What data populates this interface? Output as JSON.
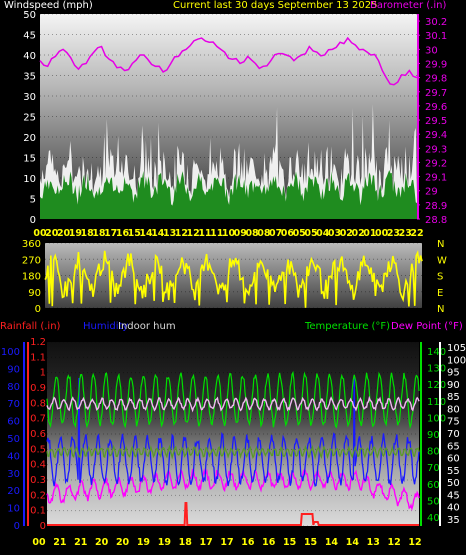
{
  "colors": {
    "wind": "#ffffff",
    "gust_fill": "#1f8c1f",
    "barometer": "#e600e6",
    "direction": "#ffff00",
    "rainfall": "#ff2020",
    "humidity": "#1a1aff",
    "indoor_hum": "#d8d8d8",
    "temperature": "#00e000",
    "dew_point": "#ff00ff",
    "indoor_temp": "#f0b8f0",
    "green_dark": "#5a9a28",
    "title": "#ffff00"
  },
  "chart_data": [
    {
      "type": "line",
      "title": "Current last 30 days September 13 2025",
      "left_label": "Windspeed (mph)",
      "right_label": "Barometer (.in)",
      "x_tick_labels": [
        "00",
        "20",
        "20",
        "19",
        "18",
        "18",
        "17",
        "16",
        "15",
        "14",
        "14",
        "13",
        "12",
        "12",
        "11",
        "11",
        "10",
        "09",
        "08",
        "08",
        "07",
        "06",
        "05",
        "05",
        "04",
        "03",
        "02",
        "02",
        "01",
        "00",
        "23",
        "23",
        "22"
      ],
      "ylim_left": [
        0,
        50
      ],
      "left_ticks": [
        0,
        5,
        10,
        15,
        20,
        25,
        30,
        35,
        40,
        45,
        50
      ],
      "ylim_right": [
        28.8,
        30.25
      ],
      "right_ticks": [
        "28.8",
        "28.9",
        "29",
        "29.1",
        "29.2",
        "29.3",
        "29.4",
        "29.5",
        "29.6",
        "29.7",
        "29.8",
        "29.9",
        "30",
        "30.1",
        "30.2"
      ],
      "series": [
        {
          "name": "Windspeed (mph)",
          "description_values": "wind speed mostly 0-15 mph, peaks to ~40"
        },
        {
          "name": "Barometer (.in)",
          "values": [
            29.92,
            29.88,
            29.95,
            30.0,
            29.94,
            29.86,
            29.9,
            29.98,
            30.02,
            29.93,
            29.87,
            29.85,
            29.9,
            29.96,
            29.93,
            29.88,
            29.84,
            29.9,
            29.95,
            30.0,
            30.06,
            30.08,
            30.05,
            30.02,
            29.98,
            29.93,
            29.9,
            29.95,
            29.9,
            29.88,
            29.92,
            29.97,
            29.96,
            29.92,
            29.96,
            30.02,
            29.98,
            29.96,
            30.0,
            30.05,
            30.08,
            30.03,
            30.0,
            29.96,
            29.92,
            29.8,
            29.75,
            29.82,
            29.85,
            29.8
          ]
        }
      ]
    },
    {
      "type": "line",
      "left_ticks": [
        0,
        90,
        180,
        270,
        360
      ],
      "right_labels": [
        "N",
        "W",
        "S",
        "E",
        "N"
      ],
      "series": [
        {
          "name": "Wind direction",
          "description_values": "direction varying 0-360 degrees"
        }
      ]
    },
    {
      "type": "line",
      "labels": {
        "rainfall": "Rainfall (.in)",
        "humidity": "Humidity",
        "indoor": "Indoor hum",
        "temperature": "Temperature (°F)",
        "dew_point": "Dew Point (°F)"
      },
      "rain_ticks": [
        "0",
        "0.1",
        "0.2",
        "0.3",
        "0.4",
        "0.5",
        "0.6",
        "0.7",
        "0.8",
        "0.9",
        "1",
        "1.1",
        "1.2"
      ],
      "hum_ticks": [
        0,
        10,
        20,
        30,
        40,
        50,
        60,
        70,
        80,
        90,
        100
      ],
      "temp_ticks": [
        40,
        50,
        60,
        70,
        80,
        90,
        100,
        110,
        120,
        130,
        140
      ],
      "dew_ticks": [
        35,
        40,
        45,
        50,
        55,
        60,
        65,
        70,
        75,
        80,
        85,
        90,
        95,
        100,
        105
      ],
      "x_tick_labels": [
        "00",
        "21",
        "21",
        "20",
        "20",
        "19",
        "19",
        "18",
        "17",
        "17",
        "16",
        "16",
        "15",
        "15",
        "14",
        "14",
        "13",
        "12",
        "12"
      ],
      "series": [
        {
          "name": "Temperature (°F)",
          "description_values": "daily cycle roughly 70-110"
        },
        {
          "name": "Dew Point (°F)",
          "description_values": "roughly 45-60"
        },
        {
          "name": "Humidity",
          "description_values": "roughly 35-85%"
        },
        {
          "name": "Indoor hum",
          "description_values": "roughly 55-62"
        },
        {
          "name": "Rainfall (.in)",
          "description_values": "mostly 0 with spikes near 0.1"
        }
      ]
    }
  ]
}
